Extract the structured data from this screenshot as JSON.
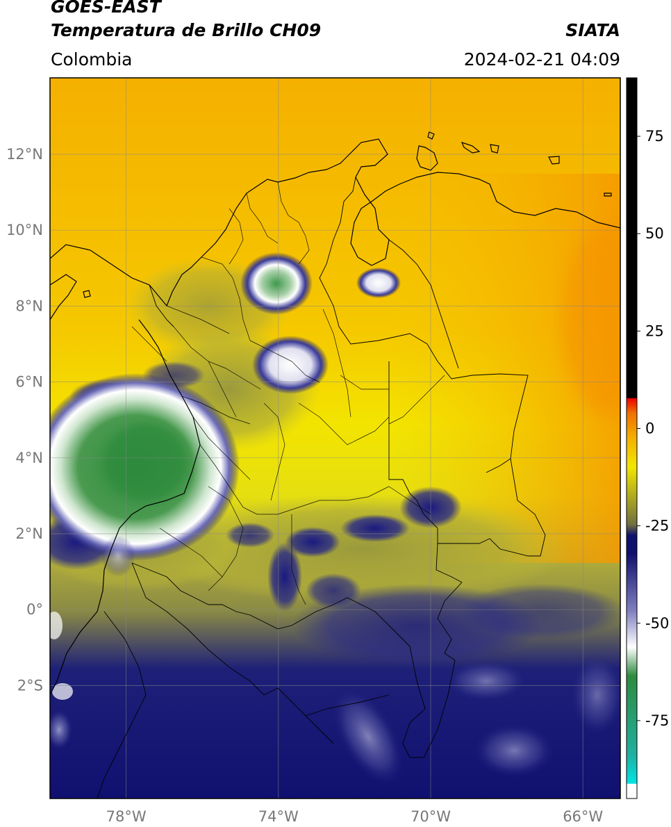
{
  "header": {
    "satellite": "GOES-EAST",
    "product": "Temperatura de Brillo CH09",
    "brand": "SIATA",
    "region": "Colombia",
    "datetime": "2024-02-21 04:09"
  },
  "map": {
    "lat_ticks": [
      {
        "value": 12,
        "label": "12°N"
      },
      {
        "value": 10,
        "label": "10°N"
      },
      {
        "value": 8,
        "label": "8°N"
      },
      {
        "value": 6,
        "label": "6°N"
      },
      {
        "value": 4,
        "label": "4°N"
      },
      {
        "value": 2,
        "label": "2°N"
      },
      {
        "value": 0,
        "label": "0°"
      },
      {
        "value": -2,
        "label": "2°S"
      }
    ],
    "lon_ticks": [
      {
        "value": -78,
        "label": "78°W"
      },
      {
        "value": -74,
        "label": "74°W"
      },
      {
        "value": -70,
        "label": "70°W"
      },
      {
        "value": -66,
        "label": "66°W"
      }
    ],
    "extent": {
      "lon_min": -80,
      "lon_max": -65,
      "lat_min": -5,
      "lat_max": 14
    },
    "grid": true
  },
  "colorbar": {
    "range": [
      -95,
      90
    ],
    "ticks": [
      {
        "value": 75,
        "label": "75"
      },
      {
        "value": 50,
        "label": "50"
      },
      {
        "value": 25,
        "label": "25"
      },
      {
        "value": 0,
        "label": "0"
      },
      {
        "value": -25,
        "label": "-25"
      },
      {
        "value": -50,
        "label": "-50"
      },
      {
        "value": -75,
        "label": "-75"
      }
    ]
  },
  "colors": {
    "warm": "#f5a300",
    "mid": "#f5e600",
    "olive": "#a8a82a",
    "cold": "#14147a",
    "very_cold": "#ffffff",
    "coldest": "#2e8b3e",
    "border": "#000000"
  }
}
